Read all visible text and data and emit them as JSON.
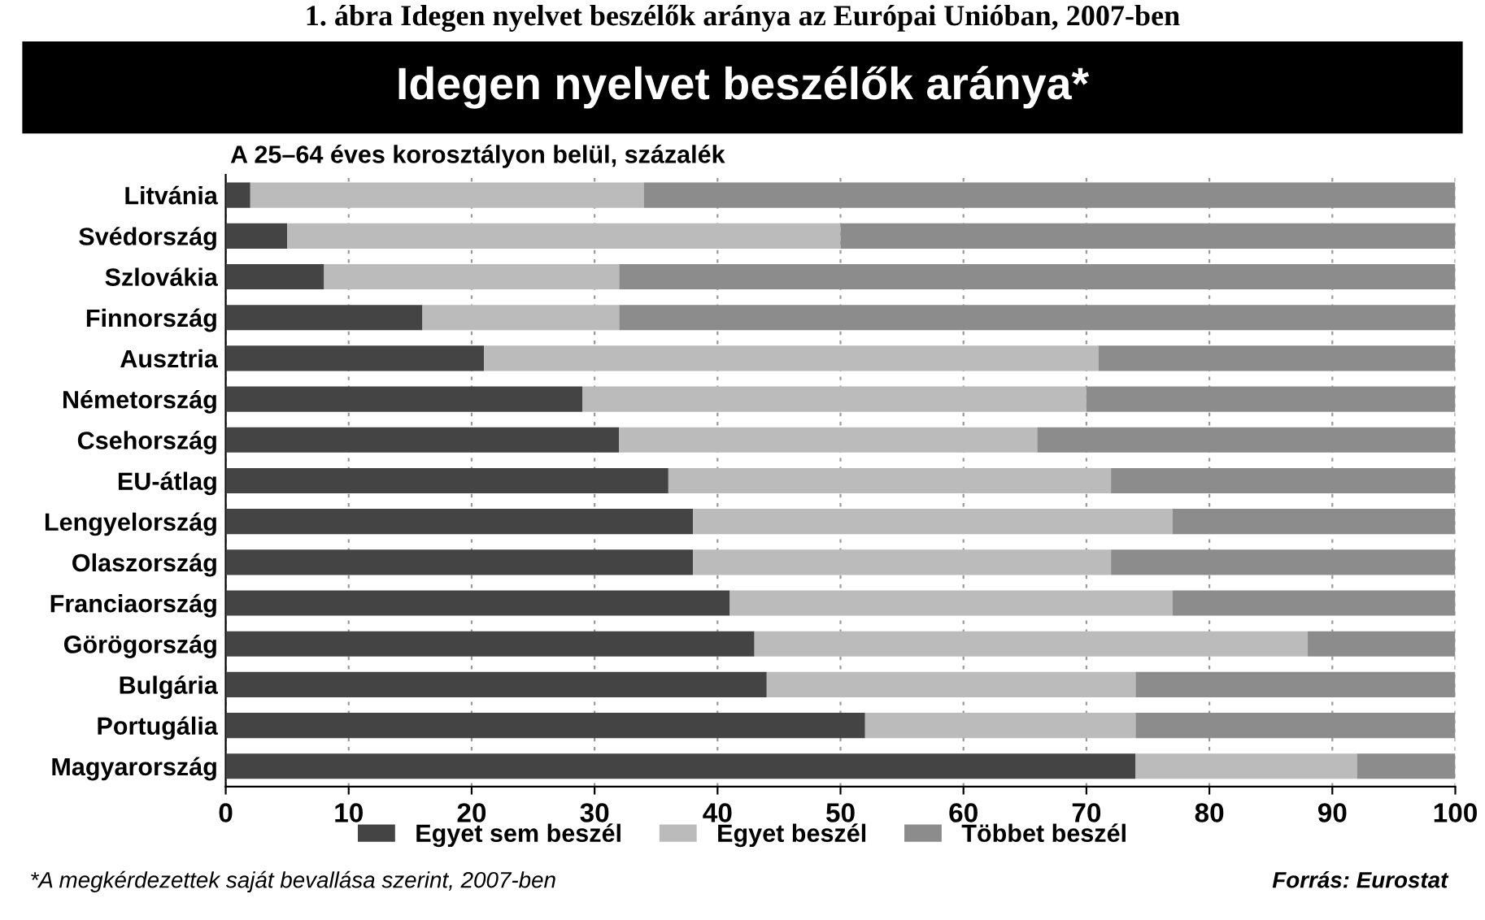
{
  "chart_data": {
    "type": "bar",
    "orientation": "horizontal",
    "stacked": true,
    "title": "Idegen nyelvet beszélők aránya*",
    "subtitle": "A 25–64 éves korosztályon belül, százalék",
    "categories": [
      "Litvánia",
      "Svédország",
      "Szlovákia",
      "Finnország",
      "Ausztria",
      "Németország",
      "Csehország",
      "EU-átlag",
      "Lengyelország",
      "Olaszország",
      "Franciaország",
      "Görögország",
      "Bulgária",
      "Portugália",
      "Magyarország"
    ],
    "series": [
      {
        "name": "Egyet sem beszél",
        "color": "#444444",
        "values": [
          2,
          5,
          8,
          16,
          21,
          29,
          32,
          36,
          38,
          38,
          41,
          43,
          44,
          52,
          74
        ]
      },
      {
        "name": "Egyet beszél",
        "color": "#bbbbbb",
        "values": [
          32,
          45,
          24,
          16,
          50,
          41,
          34,
          36,
          39,
          34,
          36,
          45,
          30,
          22,
          18
        ]
      },
      {
        "name": "Többet beszél",
        "color": "#8c8c8c",
        "values": [
          66,
          50,
          68,
          68,
          29,
          30,
          34,
          28,
          23,
          28,
          23,
          12,
          26,
          26,
          8
        ]
      }
    ],
    "xlim": [
      0,
      100
    ],
    "xticks": [
      0,
      10,
      20,
      30,
      40,
      50,
      60,
      70,
      80,
      90,
      100
    ],
    "grid": "x",
    "legend": "bottom",
    "annotations": [
      "1. ábra Idegen nyelvet beszélők aránya az Európai Unióban, 2007-ben",
      "*A megkérdezettek saját bevallása szerint, 2007-ben",
      "Forrás: Eurostat"
    ]
  }
}
